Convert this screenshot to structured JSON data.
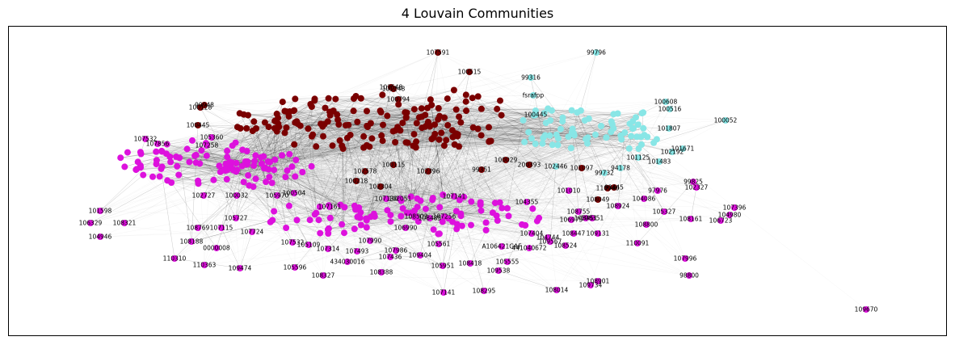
{
  "title": "4 Louvain Communities",
  "colors": {
    "red": "#7a0000",
    "magenta": "#dd11dd",
    "cyan": "#88e6e6",
    "edge": "#000000"
  },
  "nodes": [
    {
      "label": "107591",
      "c": "red"
    },
    {
      "label": "99796",
      "c": "cyan"
    },
    {
      "label": "100515",
      "c": "red"
    },
    {
      "label": "99316",
      "c": "cyan"
    },
    {
      "label": "fsrafpp",
      "c": "cyan"
    },
    {
      "label": "100608",
      "c": "cyan"
    },
    {
      "label": "100516",
      "c": "cyan"
    },
    {
      "label": "100052",
      "c": "cyan"
    },
    {
      "label": "101248",
      "c": "red"
    },
    {
      "label": "100128",
      "c": "red"
    },
    {
      "label": "99948",
      "c": "red"
    },
    {
      "label": "100445",
      "c": "red"
    },
    {
      "label": "100445",
      "c": "cyan"
    },
    {
      "label": "101807",
      "c": "cyan"
    },
    {
      "label": "101671",
      "c": "cyan"
    },
    {
      "label": "102192",
      "c": "cyan"
    },
    {
      "label": "101125",
      "c": "cyan"
    },
    {
      "label": "101483",
      "c": "cyan"
    },
    {
      "label": "94178",
      "c": "cyan"
    },
    {
      "label": "99732",
      "c": "cyan"
    },
    {
      "label": "101097",
      "c": "red"
    },
    {
      "label": "102446",
      "c": "cyan"
    },
    {
      "label": "100029",
      "c": "red"
    },
    {
      "label": "200393",
      "c": "red"
    },
    {
      "label": "99351",
      "c": "red"
    },
    {
      "label": "102396",
      "c": "red"
    },
    {
      "label": "100115",
      "c": "red"
    },
    {
      "label": "107532",
      "c": "magenta"
    },
    {
      "label": "107856",
      "c": "magenta"
    },
    {
      "label": "107258",
      "c": "magenta"
    },
    {
      "label": "105360",
      "c": "magenta"
    },
    {
      "label": "102578",
      "c": "red"
    },
    {
      "label": "100218",
      "c": "red"
    },
    {
      "label": "102304",
      "c": "red"
    },
    {
      "label": "99825",
      "c": "magenta"
    },
    {
      "label": "102327",
      "c": "magenta"
    },
    {
      "label": "93445",
      "c": "red"
    },
    {
      "label": "110940",
      "c": "red"
    },
    {
      "label": "97976",
      "c": "magenta"
    },
    {
      "label": "104086",
      "c": "magenta"
    },
    {
      "label": "107396",
      "c": "magenta"
    },
    {
      "label": "104980",
      "c": "magenta"
    },
    {
      "label": "106723",
      "c": "magenta"
    },
    {
      "label": "105327",
      "c": "magenta"
    },
    {
      "label": "108161",
      "c": "magenta"
    },
    {
      "label": "108924",
      "c": "magenta"
    },
    {
      "label": "108800",
      "c": "magenta"
    },
    {
      "label": "109131",
      "c": "magenta"
    },
    {
      "label": "110091",
      "c": "magenta"
    },
    {
      "label": "107996",
      "c": "magenta"
    },
    {
      "label": "98800",
      "c": "magenta"
    },
    {
      "label": "108901",
      "c": "magenta"
    },
    {
      "label": "109734",
      "c": "magenta"
    },
    {
      "label": "108014",
      "c": "magenta"
    },
    {
      "label": "109670",
      "c": "magenta"
    },
    {
      "label": "101010",
      "c": "magenta"
    },
    {
      "label": "108755",
      "c": "magenta"
    },
    {
      "label": "108451",
      "c": "magenta"
    },
    {
      "label": "108447",
      "c": "magenta"
    },
    {
      "label": "108524",
      "c": "magenta"
    },
    {
      "label": "109567",
      "c": "magenta"
    },
    {
      "label": "441040672",
      "c": "magenta"
    },
    {
      "label": "A106421GAF",
      "c": "magenta"
    },
    {
      "label": "109538",
      "c": "magenta"
    },
    {
      "label": "105555",
      "c": "magenta"
    },
    {
      "label": "108295",
      "c": "magenta"
    },
    {
      "label": "107141",
      "c": "magenta"
    },
    {
      "label": "108418",
      "c": "magenta"
    },
    {
      "label": "105951",
      "c": "magenta"
    },
    {
      "label": "108388",
      "c": "magenta"
    },
    {
      "label": "109404",
      "c": "magenta"
    },
    {
      "label": "107436",
      "c": "magenta"
    },
    {
      "label": "107986",
      "c": "magenta"
    },
    {
      "label": "107990",
      "c": "magenta"
    },
    {
      "label": "107493",
      "c": "magenta"
    },
    {
      "label": "434030016",
      "c": "magenta"
    },
    {
      "label": "108327",
      "c": "magenta"
    },
    {
      "label": "105596",
      "c": "magenta"
    },
    {
      "label": "109474",
      "c": "magenta"
    },
    {
      "label": "110363",
      "c": "magenta"
    },
    {
      "label": "110310",
      "c": "magenta"
    },
    {
      "label": "0000008",
      "c": "magenta"
    },
    {
      "label": "108188",
      "c": "magenta"
    },
    {
      "label": "104946",
      "c": "magenta"
    },
    {
      "label": "106329",
      "c": "magenta"
    },
    {
      "label": "101598",
      "c": "magenta"
    },
    {
      "label": "108321",
      "c": "magenta"
    },
    {
      "label": "107724",
      "c": "magenta"
    },
    {
      "label": "107532",
      "c": "magenta"
    },
    {
      "label": "105109",
      "c": "magenta"
    },
    {
      "label": "107314",
      "c": "magenta"
    },
    {
      "label": "105727",
      "c": "magenta"
    },
    {
      "label": "107115",
      "c": "magenta"
    },
    {
      "label": "108769",
      "c": "magenta"
    },
    {
      "label": "102727",
      "c": "magenta"
    },
    {
      "label": "100032",
      "c": "magenta"
    },
    {
      "label": "105970",
      "c": "magenta"
    },
    {
      "label": "100504",
      "c": "magenta"
    },
    {
      "label": "107161",
      "c": "magenta"
    },
    {
      "label": "107141",
      "c": "magenta"
    },
    {
      "label": "104355",
      "c": "magenta"
    },
    {
      "label": "108049",
      "c": "red"
    },
    {
      "label": "106990",
      "c": "magenta"
    },
    {
      "label": "105561",
      "c": "magenta"
    },
    {
      "label": "104744",
      "c": "magenta"
    },
    {
      "label": "107404",
      "c": "magenta"
    },
    {
      "label": "106975",
      "c": "magenta"
    },
    {
      "label": "108351",
      "c": "magenta"
    },
    {
      "label": "107256",
      "c": "magenta"
    },
    {
      "label": "103548",
      "c": "red"
    },
    {
      "label": "100794",
      "c": "red"
    },
    {
      "label": "107130",
      "c": "magenta"
    },
    {
      "label": "102051",
      "c": "magenta"
    },
    {
      "label": "108503",
      "c": "magenta"
    },
    {
      "label": "108485",
      "c": "magenta"
    }
  ]
}
